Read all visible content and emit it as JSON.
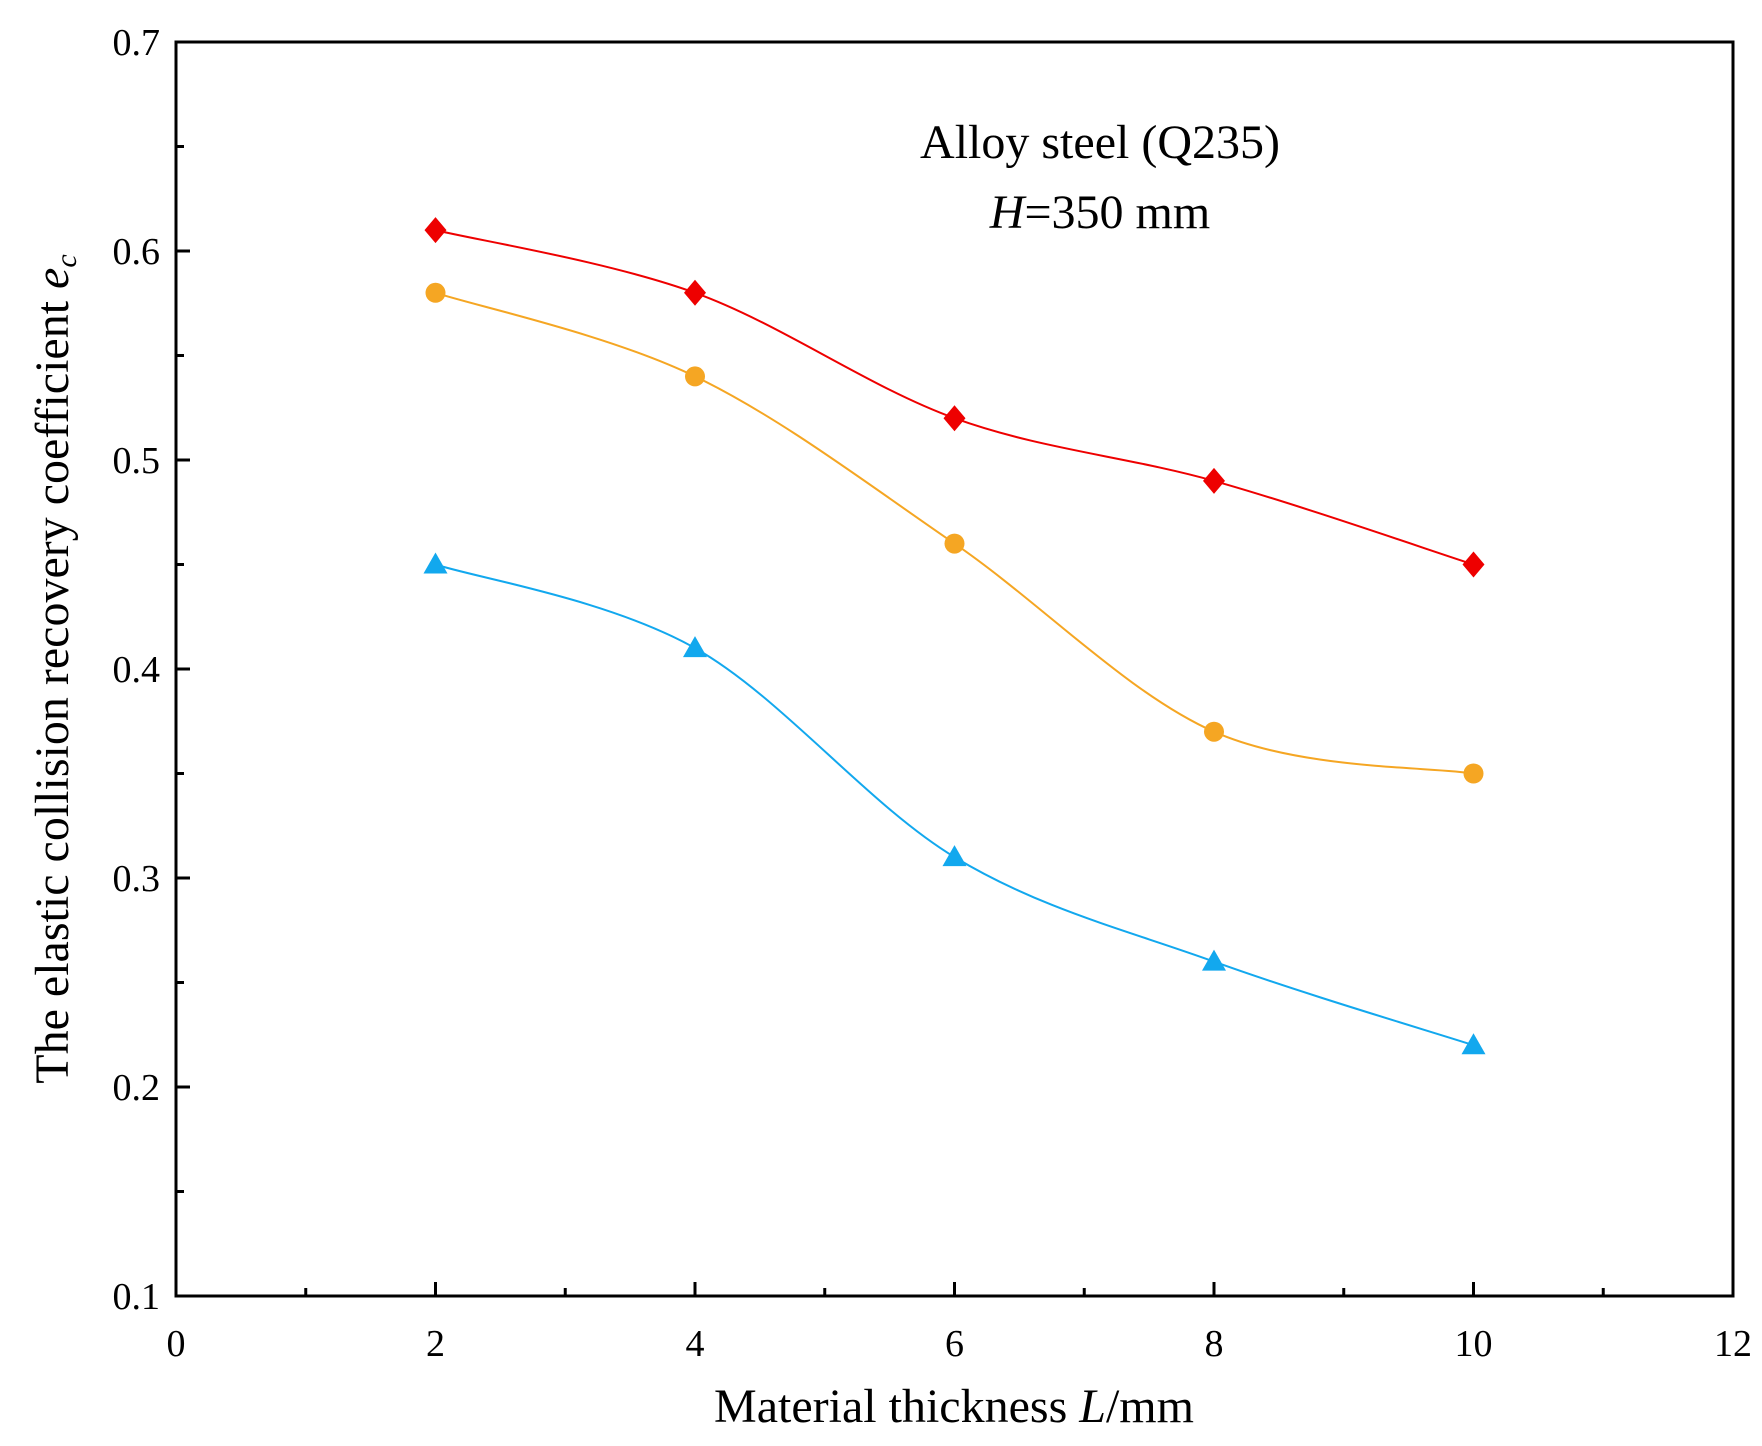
{
  "chart_data": {
    "type": "line",
    "x": [
      2,
      4,
      6,
      8,
      10
    ],
    "series": [
      {
        "name": "diamond",
        "marker": "diamond",
        "color": "#ee0000",
        "values": [
          0.61,
          0.58,
          0.52,
          0.49,
          0.45
        ]
      },
      {
        "name": "circle",
        "marker": "circle",
        "color": "#f5a623",
        "values": [
          0.58,
          0.54,
          0.46,
          0.37,
          0.35
        ]
      },
      {
        "name": "triangle",
        "marker": "triangle",
        "color": "#12a8ee",
        "values": [
          0.45,
          0.41,
          0.31,
          0.26,
          0.22
        ]
      }
    ],
    "xlim": [
      0,
      12
    ],
    "ylim": [
      0.1,
      0.7
    ],
    "x_ticks": [
      "0",
      "2",
      "4",
      "6",
      "8",
      "10",
      "12"
    ],
    "y_ticks": [
      "0.1",
      "0.2",
      "0.3",
      "0.4",
      "0.5",
      "0.6",
      "0.7"
    ],
    "xlabel": {
      "pre": "Material thickness ",
      "var": "L",
      "post": "/mm"
    },
    "ylabel": {
      "pre": "The elastic collision recovery coefficient ",
      "var": "e",
      "sub": "c"
    },
    "annotation": {
      "line1": "Alloy steel (Q235)",
      "line2_var": "H",
      "line2_rest": "=350 mm"
    },
    "grid": false
  }
}
